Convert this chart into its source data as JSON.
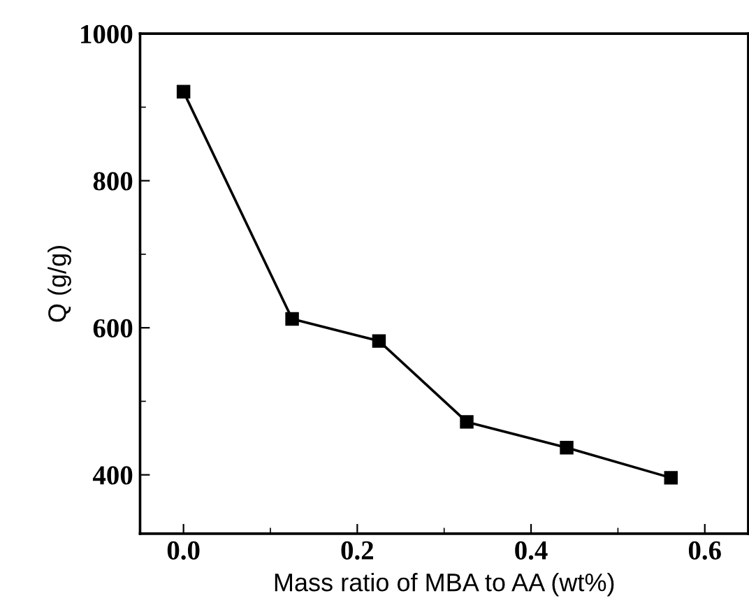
{
  "chart_data": {
    "type": "line",
    "xlabel": "Mass ratio of MBA to AA (wt%)",
    "ylabel": "Q (g/g)",
    "x": [
      0,
      0.125,
      0.225,
      0.326,
      0.441,
      0.561
    ],
    "series": [
      {
        "color": "#000000",
        "values": [
          921,
          612,
          582,
          472,
          437,
          396
        ]
      }
    ],
    "marker": "square",
    "line_style": "solid",
    "xlim": [
      -0.05,
      0.65
    ],
    "xticks": [
      {
        "value": 0,
        "label": "0.0"
      },
      0.2,
      0.4,
      0.6
    ],
    "ylim": [
      320,
      1000
    ],
    "yticks": [
      400,
      600,
      800,
      1000
    ],
    "grid": false,
    "legend": false
  }
}
